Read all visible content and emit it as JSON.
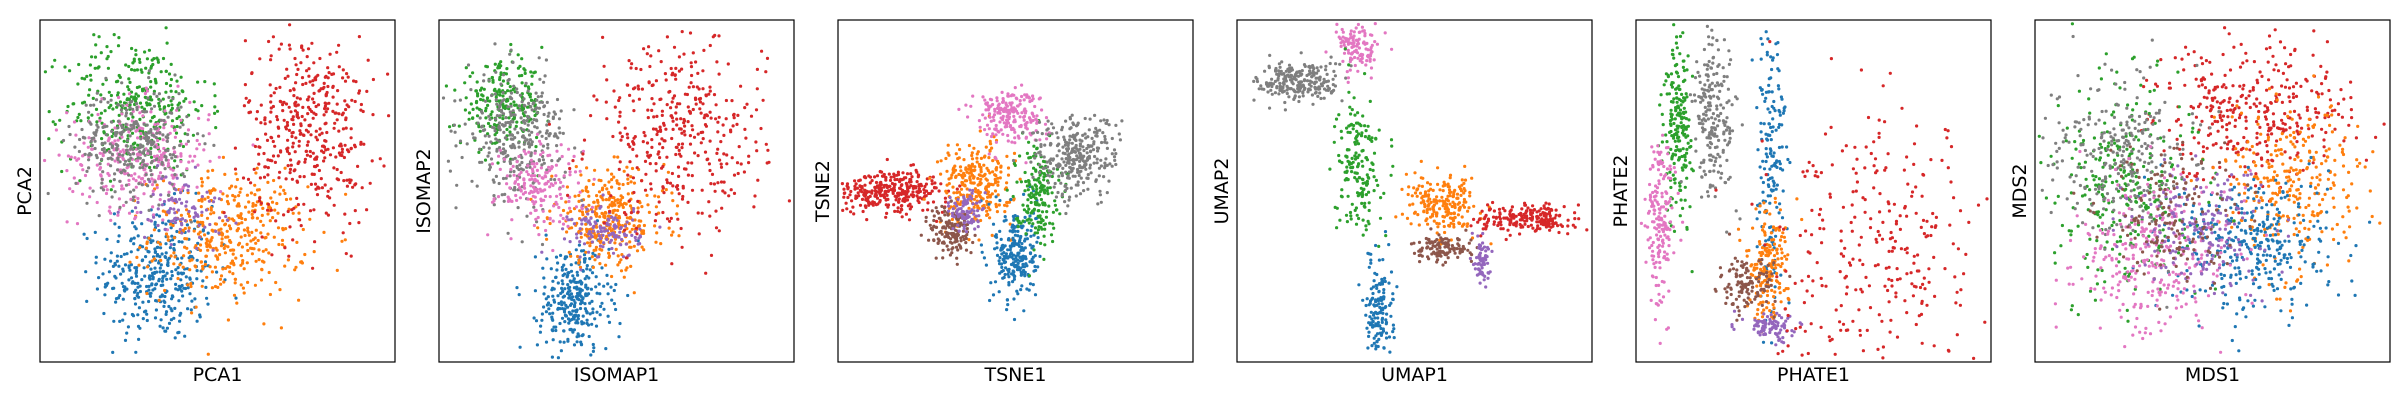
{
  "chart_data": [
    {
      "type": "scatter",
      "xlabel": "PCA1",
      "ylabel": "PCA2",
      "ticks": "none",
      "clusters": [
        {
          "color": "#1f77b4",
          "x": 0.33,
          "y": 0.26,
          "sx": 0.08,
          "sy": 0.1,
          "n": 600
        },
        {
          "color": "#ff7f0e",
          "x": 0.53,
          "y": 0.37,
          "sx": 0.11,
          "sy": 0.09,
          "n": 650
        },
        {
          "color": "#2ca02c",
          "x": 0.27,
          "y": 0.75,
          "sx": 0.1,
          "sy": 0.1,
          "n": 550
        },
        {
          "color": "#e377c2",
          "x": 0.28,
          "y": 0.6,
          "sx": 0.1,
          "sy": 0.08,
          "n": 500
        },
        {
          "color": "#7f7f7f",
          "x": 0.26,
          "y": 0.64,
          "sx": 0.08,
          "sy": 0.08,
          "n": 500
        },
        {
          "color": "#9467bd",
          "x": 0.4,
          "y": 0.45,
          "sx": 0.06,
          "sy": 0.05,
          "n": 150
        },
        {
          "color": "#d62728",
          "x": 0.76,
          "y": 0.68,
          "sx": 0.09,
          "sy": 0.14,
          "n": 700
        }
      ]
    },
    {
      "type": "scatter",
      "xlabel": "ISOMAP1",
      "ylabel": "ISOMAP2",
      "ticks": "none",
      "clusters": [
        {
          "color": "#1f77b4",
          "x": 0.38,
          "y": 0.18,
          "sx": 0.05,
          "sy": 0.08,
          "n": 500
        },
        {
          "color": "#ff7f0e",
          "x": 0.48,
          "y": 0.42,
          "sx": 0.08,
          "sy": 0.07,
          "n": 550
        },
        {
          "color": "#2ca02c",
          "x": 0.18,
          "y": 0.75,
          "sx": 0.06,
          "sy": 0.06,
          "n": 400
        },
        {
          "color": "#7f7f7f",
          "x": 0.22,
          "y": 0.66,
          "sx": 0.07,
          "sy": 0.09,
          "n": 550
        },
        {
          "color": "#e377c2",
          "x": 0.28,
          "y": 0.52,
          "sx": 0.06,
          "sy": 0.06,
          "n": 300
        },
        {
          "color": "#9467bd",
          "x": 0.47,
          "y": 0.38,
          "sx": 0.05,
          "sy": 0.04,
          "n": 200
        },
        {
          "color": "#d62728",
          "x": 0.68,
          "y": 0.66,
          "sx": 0.12,
          "sy": 0.14,
          "n": 650
        }
      ]
    },
    {
      "type": "scatter",
      "xlabel": "TSNE1",
      "ylabel": "TSNE2",
      "ticks": "none",
      "clusters": [
        {
          "color": "#d62728",
          "x": 0.15,
          "y": 0.5,
          "sx": 0.08,
          "sy": 0.03,
          "n": 550
        },
        {
          "color": "#ff7f0e",
          "x": 0.39,
          "y": 0.52,
          "sx": 0.05,
          "sy": 0.06,
          "n": 450
        },
        {
          "color": "#1f77b4",
          "x": 0.5,
          "y": 0.32,
          "sx": 0.03,
          "sy": 0.07,
          "n": 400
        },
        {
          "color": "#8c564b",
          "x": 0.32,
          "y": 0.38,
          "sx": 0.03,
          "sy": 0.04,
          "n": 250
        },
        {
          "color": "#9467bd",
          "x": 0.36,
          "y": 0.44,
          "sx": 0.02,
          "sy": 0.03,
          "n": 150
        },
        {
          "color": "#2ca02c",
          "x": 0.56,
          "y": 0.5,
          "sx": 0.03,
          "sy": 0.07,
          "n": 300
        },
        {
          "color": "#e377c2",
          "x": 0.48,
          "y": 0.72,
          "sx": 0.05,
          "sy": 0.04,
          "n": 350
        },
        {
          "color": "#7f7f7f",
          "x": 0.67,
          "y": 0.6,
          "sx": 0.06,
          "sy": 0.06,
          "n": 500
        }
      ]
    },
    {
      "type": "scatter",
      "xlabel": "UMAP1",
      "ylabel": "UMAP2",
      "ticks": "none",
      "clusters": [
        {
          "color": "#7f7f7f",
          "x": 0.18,
          "y": 0.82,
          "sx": 0.06,
          "sy": 0.03,
          "n": 400
        },
        {
          "color": "#e377c2",
          "x": 0.34,
          "y": 0.92,
          "sx": 0.03,
          "sy": 0.04,
          "n": 200
        },
        {
          "color": "#2ca02c",
          "x": 0.34,
          "y": 0.58,
          "sx": 0.03,
          "sy": 0.1,
          "n": 300
        },
        {
          "color": "#ff7f0e",
          "x": 0.58,
          "y": 0.46,
          "sx": 0.05,
          "sy": 0.04,
          "n": 350
        },
        {
          "color": "#8c564b",
          "x": 0.58,
          "y": 0.33,
          "sx": 0.04,
          "sy": 0.02,
          "n": 200
        },
        {
          "color": "#d62728",
          "x": 0.82,
          "y": 0.42,
          "sx": 0.07,
          "sy": 0.02,
          "n": 350
        },
        {
          "color": "#9467bd",
          "x": 0.69,
          "y": 0.3,
          "sx": 0.01,
          "sy": 0.04,
          "n": 120
        },
        {
          "color": "#1f77b4",
          "x": 0.4,
          "y": 0.16,
          "sx": 0.02,
          "sy": 0.07,
          "n": 250
        }
      ]
    },
    {
      "type": "scatter",
      "xlabel": "PHATE1",
      "ylabel": "PHATE2",
      "ticks": "none",
      "clusters": [
        {
          "color": "#2ca02c",
          "x": 0.12,
          "y": 0.7,
          "sx": 0.02,
          "sy": 0.14,
          "n": 350
        },
        {
          "color": "#7f7f7f",
          "x": 0.22,
          "y": 0.72,
          "sx": 0.03,
          "sy": 0.12,
          "n": 350
        },
        {
          "color": "#e377c2",
          "x": 0.07,
          "y": 0.4,
          "sx": 0.02,
          "sy": 0.12,
          "n": 300
        },
        {
          "color": "#1f77b4",
          "x": 0.38,
          "y": 0.6,
          "sx": 0.02,
          "sy": 0.25,
          "n": 300
        },
        {
          "color": "#ff7f0e",
          "x": 0.37,
          "y": 0.28,
          "sx": 0.03,
          "sy": 0.08,
          "n": 300
        },
        {
          "color": "#8c564b",
          "x": 0.31,
          "y": 0.22,
          "sx": 0.04,
          "sy": 0.04,
          "n": 200
        },
        {
          "color": "#9467bd",
          "x": 0.38,
          "y": 0.1,
          "sx": 0.04,
          "sy": 0.02,
          "n": 150
        },
        {
          "color": "#d62728",
          "x": 0.7,
          "y": 0.3,
          "sx": 0.15,
          "sy": 0.2,
          "n": 500
        }
      ]
    },
    {
      "type": "scatter",
      "xlabel": "MDS1",
      "ylabel": "MDS2",
      "ticks": "none",
      "clusters": [
        {
          "color": "#d62728",
          "x": 0.62,
          "y": 0.74,
          "sx": 0.14,
          "sy": 0.1,
          "n": 600
        },
        {
          "color": "#ff7f0e",
          "x": 0.72,
          "y": 0.52,
          "sx": 0.1,
          "sy": 0.12,
          "n": 500
        },
        {
          "color": "#1f77b4",
          "x": 0.62,
          "y": 0.34,
          "sx": 0.11,
          "sy": 0.1,
          "n": 550
        },
        {
          "color": "#2ca02c",
          "x": 0.26,
          "y": 0.52,
          "sx": 0.1,
          "sy": 0.16,
          "n": 500
        },
        {
          "color": "#7f7f7f",
          "x": 0.24,
          "y": 0.6,
          "sx": 0.1,
          "sy": 0.12,
          "n": 450
        },
        {
          "color": "#e377c2",
          "x": 0.34,
          "y": 0.3,
          "sx": 0.11,
          "sy": 0.11,
          "n": 500
        },
        {
          "color": "#9467bd",
          "x": 0.46,
          "y": 0.4,
          "sx": 0.1,
          "sy": 0.1,
          "n": 300
        },
        {
          "color": "#8c564b",
          "x": 0.4,
          "y": 0.42,
          "sx": 0.1,
          "sy": 0.1,
          "n": 250
        }
      ]
    }
  ]
}
